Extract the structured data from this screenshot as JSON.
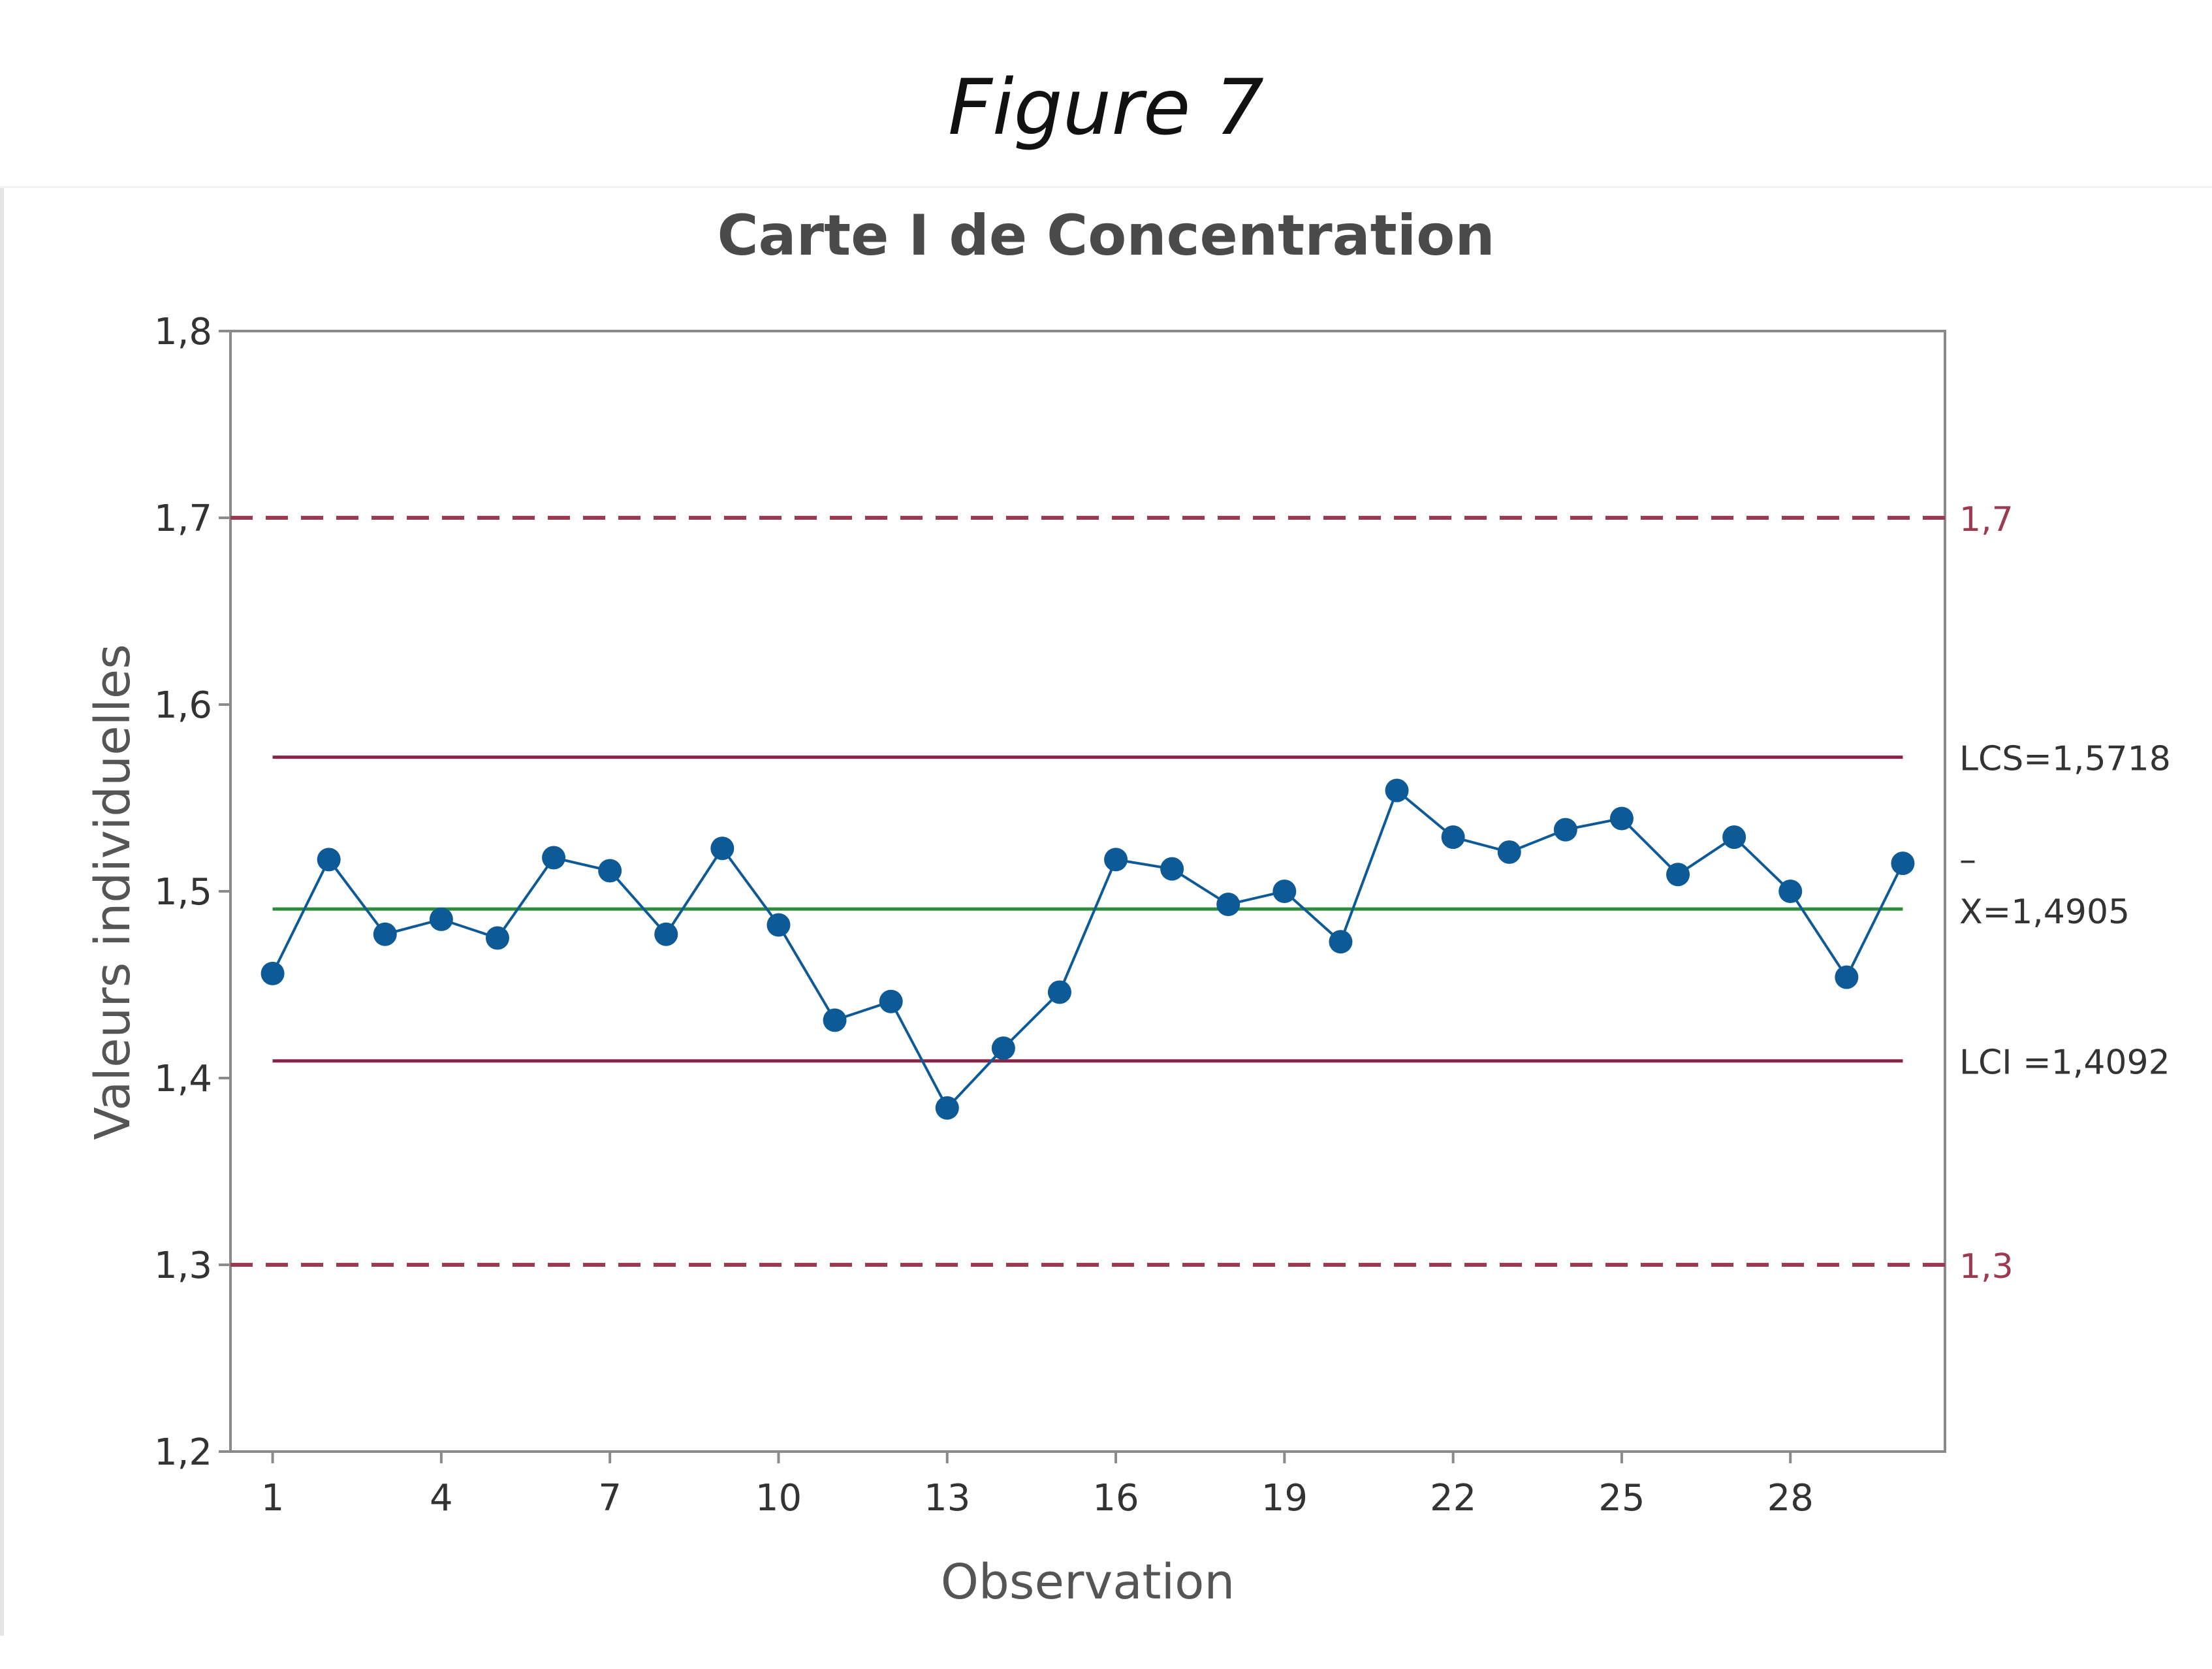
{
  "figure_label": "Figure 7",
  "chart_data": {
    "type": "line",
    "title": "Carte I de Concentration",
    "xlabel": "Observation",
    "ylabel": "Valeurs individuelles",
    "ylim": [
      1.2,
      1.8
    ],
    "xlim": [
      0.25,
      30.75
    ],
    "y_ticks": [
      "1,2",
      "1,3",
      "1,4",
      "1,5",
      "1,6",
      "1,7",
      "1,8"
    ],
    "y_tick_values": [
      1.2,
      1.3,
      1.4,
      1.5,
      1.6,
      1.7,
      1.8
    ],
    "x_ticks": [
      "1",
      "4",
      "7",
      "10",
      "13",
      "16",
      "19",
      "22",
      "25",
      "28"
    ],
    "x_tick_values": [
      1,
      4,
      7,
      10,
      13,
      16,
      19,
      22,
      25,
      28
    ],
    "grid": false,
    "series": [
      {
        "x": [
          1,
          2,
          3,
          4,
          5,
          6,
          7,
          8,
          9,
          10,
          11,
          12,
          13,
          14,
          15,
          16,
          17,
          18,
          19,
          20,
          21,
          22,
          23,
          24,
          25,
          26,
          27,
          28,
          29,
          30
        ],
        "values": [
          1.456,
          1.517,
          1.477,
          1.485,
          1.475,
          1.518,
          1.511,
          1.477,
          1.523,
          1.482,
          1.431,
          1.441,
          1.384,
          1.416,
          1.446,
          1.517,
          1.512,
          1.493,
          1.5,
          1.473,
          1.554,
          1.529,
          1.521,
          1.533,
          1.539,
          1.509,
          1.529,
          1.5,
          1.454,
          1.515
        ],
        "color": "#0e5a96"
      }
    ],
    "reference_lines": [
      {
        "label": "LCS=1,5718",
        "value": 1.5718,
        "style": "solid",
        "color": "#8b2545"
      },
      {
        "label_bar": "–",
        "label": "X=1,4905",
        "value": 1.4905,
        "style": "solid",
        "color": "#2e8b3a"
      },
      {
        "label": "LCI =1,4092",
        "value": 1.4092,
        "style": "solid",
        "color": "#8b2545"
      },
      {
        "label": "1,7",
        "value": 1.7,
        "style": "dashed",
        "color": "#9c3a52"
      },
      {
        "label": "1,3",
        "value": 1.3,
        "style": "dashed",
        "color": "#9c3a52"
      }
    ]
  }
}
